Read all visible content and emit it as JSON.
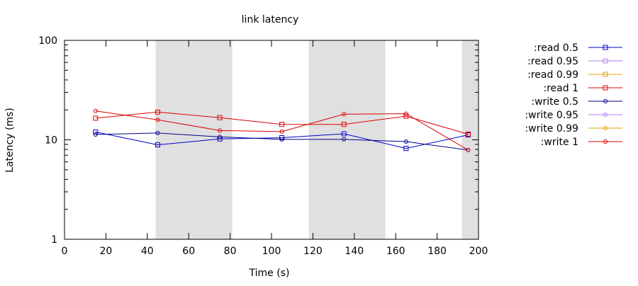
{
  "chart_data": {
    "type": "line",
    "title": "link latency",
    "xlabel": "Time (s)",
    "ylabel": "Latency (ms)",
    "xlim": [
      0,
      200
    ],
    "ylim": [
      1,
      100
    ],
    "yscale": "log",
    "grid": false,
    "legend_position": "right",
    "x_ticks": [
      "0",
      "20",
      "40",
      "60",
      "80",
      "100",
      "120",
      "140",
      "160",
      "180",
      "200"
    ],
    "y_ticks": [
      "1",
      "10",
      "100"
    ],
    "shaded_bands": [
      {
        "x_start": 44,
        "x_end": 81
      },
      {
        "x_start": 118,
        "x_end": 155
      },
      {
        "x_start": 192,
        "x_end": 200
      }
    ],
    "series": [
      {
        "name": ":read 0.5",
        "color": "#0000cc",
        "marker": "square",
        "x": [
          15,
          45,
          75,
          105,
          135,
          165,
          195
        ],
        "y": [
          12.0,
          8.9,
          10.2,
          10.5,
          11.5,
          8.2,
          11.2
        ]
      },
      {
        "name": ":read 0.95",
        "color": "#b57cf2",
        "marker": "square",
        "x": [],
        "y": []
      },
      {
        "name": ":read 0.99",
        "color": "#e0a000",
        "marker": "square",
        "x": [],
        "y": []
      },
      {
        "name": ":read 1",
        "color": "#dd0000",
        "marker": "square",
        "x": [
          15,
          45,
          75,
          105,
          135,
          165,
          195
        ],
        "y": [
          16.5,
          19.0,
          16.7,
          14.3,
          14.3,
          17.3,
          11.4
        ]
      },
      {
        "name": ":write 0.5",
        "color": "#000088",
        "marker": "circle",
        "x": [
          15,
          45,
          75,
          105,
          135,
          165,
          195
        ],
        "y": [
          11.3,
          11.7,
          10.7,
          10.1,
          10.1,
          9.6,
          7.9
        ]
      },
      {
        "name": ":write 0.95",
        "color": "#b57cf2",
        "marker": "circle",
        "x": [],
        "y": []
      },
      {
        "name": ":write 0.99",
        "color": "#e0a000",
        "marker": "circle",
        "x": [],
        "y": []
      },
      {
        "name": ":write 1",
        "color": "#dd0000",
        "marker": "circle",
        "x": [
          15,
          45,
          75,
          105,
          135,
          165,
          195
        ],
        "y": [
          19.5,
          15.9,
          12.4,
          12.1,
          18.1,
          18.3,
          7.9
        ]
      }
    ]
  }
}
